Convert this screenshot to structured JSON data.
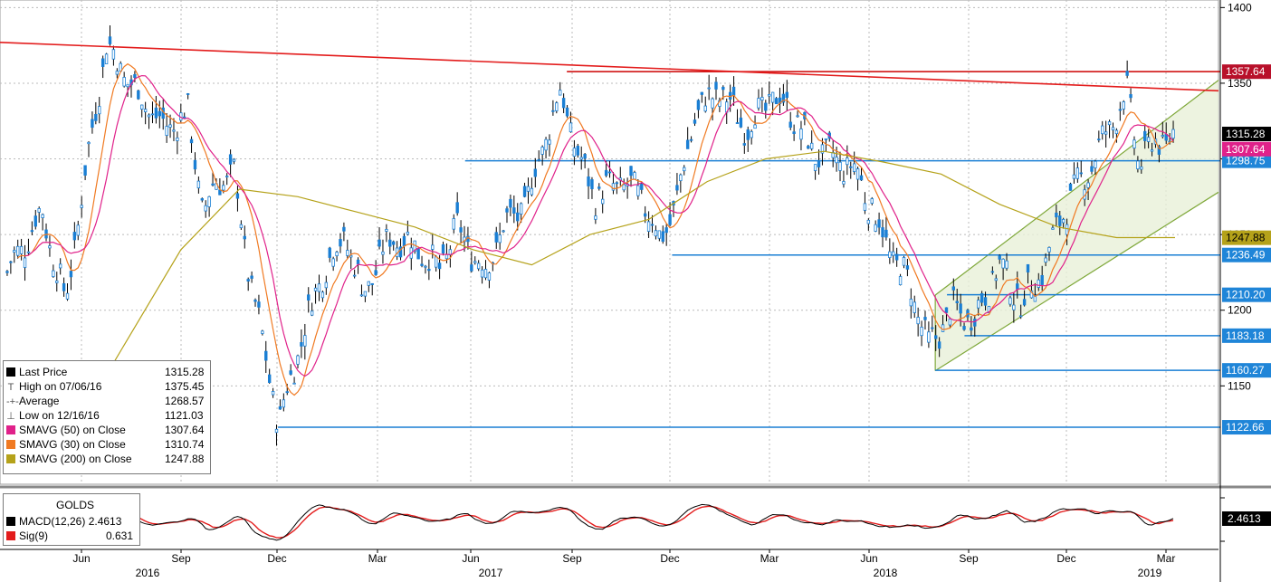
{
  "chart_data": {
    "type": "candlestick",
    "y_ticks": [
      1150,
      1200,
      1250,
      1300,
      1350,
      1400
    ],
    "ylim": [
      1085,
      1402
    ],
    "x_month_labels": [
      "Jun",
      "Sep",
      "Dec",
      "Mar",
      "Jun",
      "Sep",
      "Dec",
      "Mar",
      "Jun",
      "Sep",
      "Dec",
      "Mar"
    ],
    "x_year_labels": [
      "2016",
      "2017",
      "2018",
      "2019"
    ],
    "price_anchors": [
      {
        "x": 0.0,
        "y": 1225
      },
      {
        "x": 0.03,
        "y": 1265
      },
      {
        "x": 0.05,
        "y": 1205
      },
      {
        "x": 0.075,
        "y": 1330
      },
      {
        "x": 0.085,
        "y": 1375
      },
      {
        "x": 0.11,
        "y": 1345
      },
      {
        "x": 0.135,
        "y": 1320
      },
      {
        "x": 0.155,
        "y": 1330
      },
      {
        "x": 0.168,
        "y": 1265
      },
      {
        "x": 0.18,
        "y": 1285
      },
      {
        "x": 0.195,
        "y": 1290
      },
      {
        "x": 0.205,
        "y": 1235
      },
      {
        "x": 0.22,
        "y": 1175
      },
      {
        "x": 0.233,
        "y": 1125
      },
      {
        "x": 0.25,
        "y": 1175
      },
      {
        "x": 0.27,
        "y": 1225
      },
      {
        "x": 0.29,
        "y": 1250
      },
      {
        "x": 0.305,
        "y": 1210
      },
      {
        "x": 0.33,
        "y": 1250
      },
      {
        "x": 0.355,
        "y": 1240
      },
      {
        "x": 0.37,
        "y": 1225
      },
      {
        "x": 0.385,
        "y": 1255
      },
      {
        "x": 0.41,
        "y": 1225
      },
      {
        "x": 0.425,
        "y": 1255
      },
      {
        "x": 0.445,
        "y": 1270
      },
      {
        "x": 0.46,
        "y": 1310
      },
      {
        "x": 0.475,
        "y": 1345
      },
      {
        "x": 0.49,
        "y": 1300
      },
      {
        "x": 0.505,
        "y": 1275
      },
      {
        "x": 0.525,
        "y": 1285
      },
      {
        "x": 0.545,
        "y": 1275
      },
      {
        "x": 0.56,
        "y": 1245
      },
      {
        "x": 0.575,
        "y": 1275
      },
      {
        "x": 0.59,
        "y": 1330
      },
      {
        "x": 0.61,
        "y": 1345
      },
      {
        "x": 0.635,
        "y": 1320
      },
      {
        "x": 0.655,
        "y": 1340
      },
      {
        "x": 0.67,
        "y": 1335
      },
      {
        "x": 0.69,
        "y": 1305
      },
      {
        "x": 0.71,
        "y": 1300
      },
      {
        "x": 0.73,
        "y": 1290
      },
      {
        "x": 0.745,
        "y": 1260
      },
      {
        "x": 0.76,
        "y": 1235
      },
      {
        "x": 0.775,
        "y": 1215
      },
      {
        "x": 0.79,
        "y": 1175
      },
      {
        "x": 0.81,
        "y": 1200
      },
      {
        "x": 0.83,
        "y": 1195
      },
      {
        "x": 0.85,
        "y": 1230
      },
      {
        "x": 0.87,
        "y": 1205
      },
      {
        "x": 0.89,
        "y": 1230
      },
      {
        "x": 0.905,
        "y": 1265
      },
      {
        "x": 0.925,
        "y": 1290
      },
      {
        "x": 0.945,
        "y": 1320
      },
      {
        "x": 0.96,
        "y": 1345
      },
      {
        "x": 0.97,
        "y": 1300
      },
      {
        "x": 0.985,
        "y": 1310
      },
      {
        "x": 1.0,
        "y": 1315
      }
    ],
    "sma200_anchors": [
      {
        "x": 0.05,
        "y": 1110
      },
      {
        "x": 0.1,
        "y": 1175
      },
      {
        "x": 0.15,
        "y": 1240
      },
      {
        "x": 0.2,
        "y": 1280
      },
      {
        "x": 0.25,
        "y": 1275
      },
      {
        "x": 0.3,
        "y": 1265
      },
      {
        "x": 0.35,
        "y": 1255
      },
      {
        "x": 0.4,
        "y": 1240
      },
      {
        "x": 0.45,
        "y": 1230
      },
      {
        "x": 0.5,
        "y": 1250
      },
      {
        "x": 0.55,
        "y": 1260
      },
      {
        "x": 0.6,
        "y": 1285
      },
      {
        "x": 0.65,
        "y": 1300
      },
      {
        "x": 0.7,
        "y": 1305
      },
      {
        "x": 0.75,
        "y": 1298
      },
      {
        "x": 0.8,
        "y": 1290
      },
      {
        "x": 0.85,
        "y": 1270
      },
      {
        "x": 0.9,
        "y": 1255
      },
      {
        "x": 0.95,
        "y": 1248
      },
      {
        "x": 1.0,
        "y": 1248
      }
    ],
    "horizontal_levels": [
      {
        "label": "1357.64",
        "value": 1357.64,
        "color": "#cc0000"
      },
      {
        "label": "1298.75",
        "value": 1298.75,
        "color": "#1a7fd4"
      },
      {
        "label": "1236.49",
        "value": 1236.49,
        "color": "#1a7fd4"
      },
      {
        "label": "1210.20",
        "value": 1210.2,
        "color": "#1a7fd4"
      },
      {
        "label": "1183.18",
        "value": 1183.18,
        "color": "#1a7fd4"
      },
      {
        "label": "1160.27",
        "value": 1160.27,
        "color": "#1a7fd4"
      },
      {
        "label": "1122.66",
        "value": 1122.66,
        "color": "#1a7fd4"
      }
    ],
    "value_tags": [
      {
        "label": "1315.28",
        "value": 1315.28,
        "bg": "#000000",
        "fg": "#ffffff"
      },
      {
        "label": "1307.64",
        "value": 1307.64,
        "bg": "#e0218a",
        "fg": "#ffffff"
      },
      {
        "label": "1247.88",
        "value": 1247.88,
        "bg": "#b5a21a",
        "fg": "#000000"
      }
    ],
    "legend": [
      {
        "marker": "■",
        "color": "#000000",
        "label": "Last Price",
        "value": "1315.28"
      },
      {
        "marker": "T",
        "color": "#555555",
        "label": "High on 07/06/16",
        "value": "1375.45"
      },
      {
        "marker": "-+-",
        "color": "#555555",
        "label": "Average",
        "value": "1268.57"
      },
      {
        "marker": "⊥",
        "color": "#555555",
        "label": "Low on 12/16/16",
        "value": "1121.03"
      },
      {
        "marker": "■",
        "color": "#e0218a",
        "label": "SMAVG (50)  on Close",
        "value": "1307.64"
      },
      {
        "marker": "■",
        "color": "#f07a22",
        "label": "SMAVG (30)  on Close",
        "value": "1310.74"
      },
      {
        "marker": "■",
        "color": "#b5a21a",
        "label": "SMAVG (200)  on Close",
        "value": "1247.88"
      }
    ],
    "macd": {
      "title": "GOLDS",
      "macd_label": "MACD(12,26)",
      "macd_value": "2.4613",
      "sig_label": "Sig(9)",
      "sig_value": "0.631",
      "tag": "2.4613",
      "macd_color": "#000000",
      "sig_color": "#e31c1c"
    },
    "colors": {
      "candle": "#1a7fd4",
      "sma50": "#e0218a",
      "sma30": "#f07a22",
      "sma200": "#b5a21a",
      "trend": "#e31c1c",
      "channel": "#7fa83a",
      "channel_fill": "#e9f0d8"
    }
  }
}
